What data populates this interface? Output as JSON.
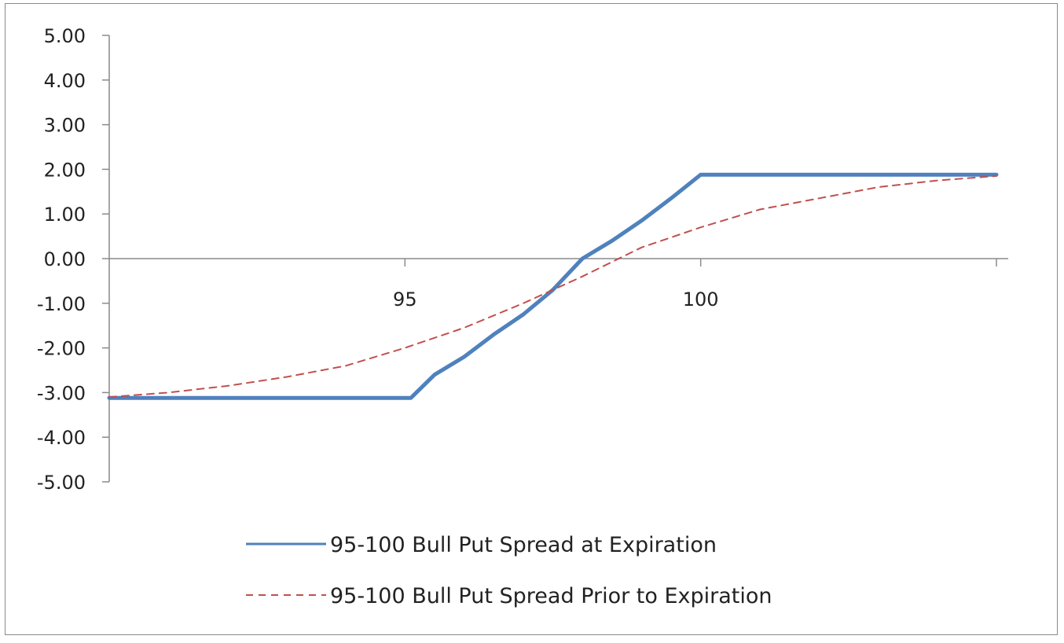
{
  "chart_data": {
    "type": "line",
    "title": "",
    "xlabel": "",
    "ylabel": "",
    "xlim": [
      90,
      105
    ],
    "ylim": [
      -5,
      5
    ],
    "y_ticks": [
      5,
      4,
      3,
      2,
      1,
      0,
      -1,
      -2,
      -3,
      -4,
      -5
    ],
    "y_tick_labels": [
      "5.00",
      "4.00",
      "3.00",
      "2.00",
      "1.00",
      "0.00",
      "-1.00",
      "-2.00",
      "-3.00",
      "-4.00",
      "-5.00"
    ],
    "x_ticks": [
      95,
      100,
      105
    ],
    "x_tick_labels": [
      "95",
      "100",
      ""
    ],
    "grid": false,
    "legend_position": "bottom",
    "series": [
      {
        "name": "95-100 Bull Put Spread at Expiration",
        "color": "#4F81BD",
        "style": "solid",
        "x": [
          90,
          95.1,
          95.5,
          96,
          96.5,
          97,
          97.5,
          98,
          98.5,
          99,
          99.5,
          100,
          101,
          102,
          103,
          104,
          105
        ],
        "y": [
          -3.12,
          -3.12,
          -2.6,
          -2.2,
          -1.7,
          -1.25,
          -0.7,
          0.0,
          0.4,
          0.85,
          1.35,
          1.88,
          1.88,
          1.88,
          1.88,
          1.88,
          1.88
        ]
      },
      {
        "name": "95-100 Bull Put Spread Prior to Expiration",
        "color": "#C0504D",
        "style": "dashed",
        "x": [
          90,
          91,
          92,
          93,
          94,
          95,
          96,
          97,
          98,
          99,
          100,
          101,
          102,
          103,
          104,
          105
        ],
        "y": [
          -3.1,
          -3.0,
          -2.85,
          -2.65,
          -2.4,
          -2.0,
          -1.55,
          -1.0,
          -0.4,
          0.25,
          0.7,
          1.1,
          1.35,
          1.6,
          1.75,
          1.85
        ]
      }
    ]
  }
}
